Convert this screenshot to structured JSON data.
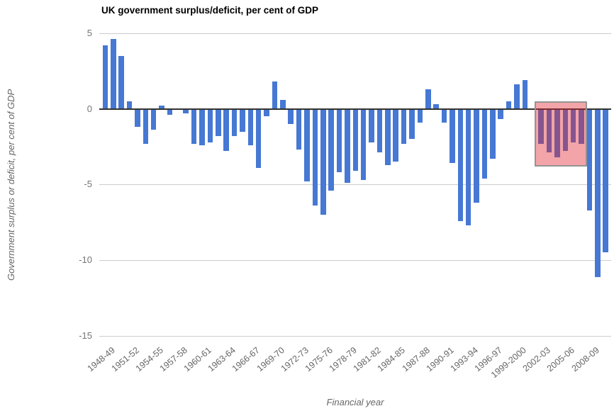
{
  "chart_data": {
    "type": "bar",
    "title": "UK government surplus/deficit, per cent of GDP",
    "xlabel": "Financial year",
    "ylabel": "Government surplus or deficit, per cent of GDP",
    "ylim": [
      -15,
      5
    ],
    "y_ticks": [
      5,
      0,
      -5,
      -10,
      -15
    ],
    "x_tick_every": 3,
    "grid_on": true,
    "legend": "none",
    "bar_color": "#4678d4",
    "grid_color": "#cccccc",
    "zero_line_color": "#333333",
    "tick_text_color": "#757575",
    "axis_title_color": "#666666",
    "categories": [
      "1948-49",
      "1949-50",
      "1950-51",
      "1951-52",
      "1952-53",
      "1953-54",
      "1954-55",
      "1955-56",
      "1956-57",
      "1957-58",
      "1958-59",
      "1959-60",
      "1960-61",
      "1961-62",
      "1962-63",
      "1963-64",
      "1964-65",
      "1965-66",
      "1966-67",
      "1967-68",
      "1968-69",
      "1969-70",
      "1970-71",
      "1971-72",
      "1972-73",
      "1973-74",
      "1974-75",
      "1975-76",
      "1976-77",
      "1977-78",
      "1978-79",
      "1979-80",
      "1980-81",
      "1981-82",
      "1982-83",
      "1983-84",
      "1984-85",
      "1985-86",
      "1986-87",
      "1987-88",
      "1988-89",
      "1989-90",
      "1990-91",
      "1991-92",
      "1992-93",
      "1993-94",
      "1994-95",
      "1995-96",
      "1996-97",
      "1997-98",
      "1998-99",
      "1999-2000",
      "2000-01",
      "2001-02",
      "2002-03",
      "2003-04",
      "2004-05",
      "2005-06",
      "2006-07",
      "2007-08",
      "2008-09",
      "2009-10",
      "2010-11"
    ],
    "values": [
      4.2,
      4.6,
      3.5,
      0.5,
      -1.2,
      -2.3,
      -1.4,
      0.2,
      -0.4,
      0.0,
      -0.3,
      -2.3,
      -2.4,
      -2.2,
      -1.8,
      -2.8,
      -1.8,
      -1.5,
      -2.4,
      -3.9,
      -0.5,
      1.8,
      0.6,
      -1.0,
      -2.7,
      -4.8,
      -6.4,
      -7.0,
      -5.4,
      -4.2,
      -4.9,
      -4.1,
      -4.7,
      -2.2,
      -2.9,
      -3.7,
      -3.5,
      -2.3,
      -2.0,
      -0.9,
      1.3,
      0.3,
      -0.9,
      -3.6,
      -7.4,
      -7.7,
      -6.2,
      -4.6,
      -3.3,
      -0.7,
      0.5,
      1.6,
      1.9,
      0.0,
      -2.3,
      -2.9,
      -3.2,
      -2.8,
      -2.2,
      -2.3,
      -6.7,
      -11.1,
      -9.5
    ],
    "highlight": {
      "from": "2002-03",
      "to": "2007-08",
      "top_value": 0.5,
      "bottom_value": -3.8,
      "fill": "rgba(224,36,45,0.415)",
      "border_color": "#949494"
    }
  }
}
